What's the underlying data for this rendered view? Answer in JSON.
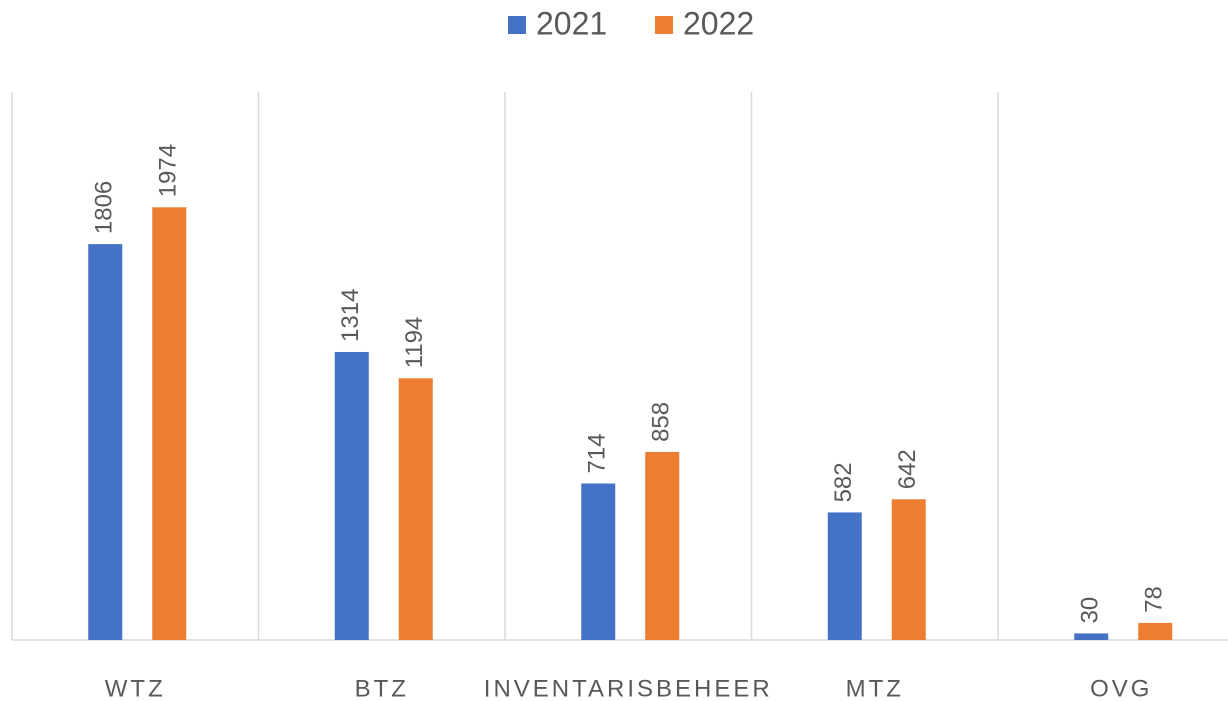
{
  "chart_data": {
    "type": "bar",
    "categories": [
      "WTZ",
      "BTZ",
      "INVENTARISBEHEER",
      "MTZ",
      "OVG"
    ],
    "series": [
      {
        "name": "2021",
        "color": "#4472c4",
        "values": [
          1806,
          1314,
          714,
          582,
          30
        ]
      },
      {
        "name": "2022",
        "color": "#ed7d31",
        "values": [
          1974,
          1194,
          858,
          642,
          78
        ]
      }
    ],
    "ylim": [
      0,
      2500
    ],
    "legend": "top"
  }
}
